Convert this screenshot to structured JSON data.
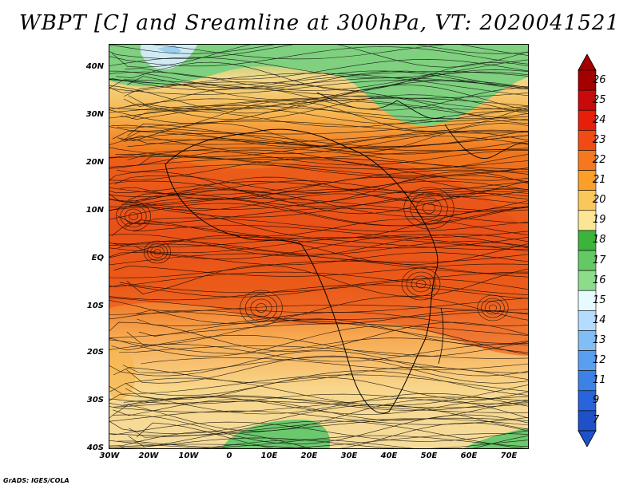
{
  "title": "WBPT [C] and Sreamline at 300hPa, VT: 2020041521",
  "footer": "GrADS: IGES/COLA",
  "y_ticks": [
    "40N",
    "30N",
    "20N",
    "10N",
    "EQ",
    "10S",
    "20S",
    "30S",
    "40S"
  ],
  "x_ticks": [
    "30W",
    "20W",
    "10W",
    "0",
    "10E",
    "20E",
    "30E",
    "40E",
    "50E",
    "60E",
    "70E"
  ],
  "colorbar": {
    "labels": [
      "26",
      "25",
      "24",
      "23",
      "22",
      "21",
      "20",
      "19",
      "18",
      "17",
      "16",
      "15",
      "14",
      "13",
      "12",
      "11",
      "9",
      "7"
    ],
    "colors": [
      "#a50000",
      "#c80a0a",
      "#e61e0a",
      "#f04b14",
      "#f5781e",
      "#faa028",
      "#fac85a",
      "#fae696",
      "#3cb43c",
      "#64c864",
      "#8cdc8c",
      "#e6faff",
      "#b4dcff",
      "#82bef5",
      "#5a9ef0",
      "#3c82e6",
      "#2864dc",
      "#1e50c8"
    ]
  },
  "chart_data": {
    "type": "heatmap",
    "variable": "WBPT [C]",
    "level": "300hPa",
    "valid_time": "2020041521",
    "lon_range": [
      -30,
      75
    ],
    "lat_range": [
      -40,
      45
    ],
    "color_scale": [
      7,
      9,
      11,
      12,
      13,
      14,
      15,
      16,
      17,
      18,
      19,
      20,
      21,
      22,
      23,
      24,
      25,
      26
    ],
    "overlay": "streamlines"
  }
}
